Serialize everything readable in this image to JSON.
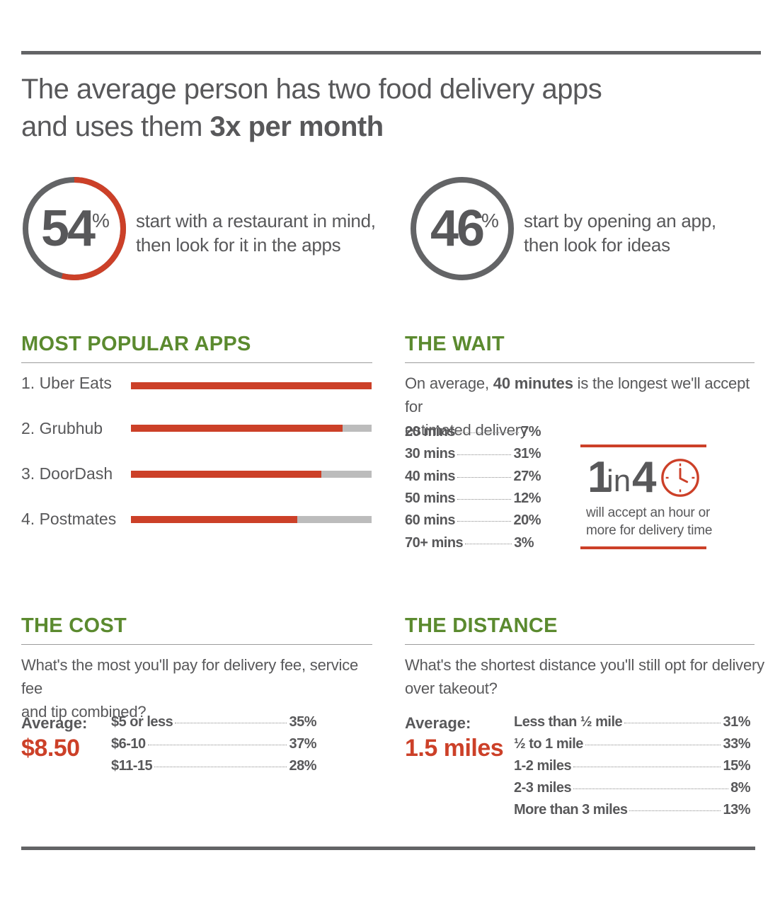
{
  "headline": {
    "line1": "The average person has two food delivery apps",
    "line2_plain": "and uses them ",
    "line2_bold": "3x per month"
  },
  "stats": [
    {
      "number": "54",
      "symbol": "%",
      "line1": "start with a restaurant in mind,",
      "line2": "then look for it in the apps",
      "percent": 54
    },
    {
      "number": "46",
      "symbol": "%",
      "line1": "start by opening an app,",
      "line2": "then look for ideas",
      "percent": 46
    }
  ],
  "apps": {
    "title": "MOST POPULAR APPS",
    "items": [
      {
        "label": "1. Uber Eats",
        "fill": 1.0
      },
      {
        "label": "2. Grubhub",
        "fill": 0.88
      },
      {
        "label": "3. DoorDash",
        "fill": 0.79
      },
      {
        "label": "4. Postmates",
        "fill": 0.69
      }
    ]
  },
  "wait": {
    "title": "THE WAIT",
    "intro_pre": "On average, ",
    "intro_bold": "40 minutes",
    "intro_post": " is the longest we'll accept for",
    "intro_line2": "estimated delivery",
    "rows": [
      {
        "label": "20 mins",
        "value": "7%"
      },
      {
        "label": "30 mins",
        "value": "31%"
      },
      {
        "label": "40 mins",
        "value": "27%"
      },
      {
        "label": "50 mins",
        "value": "12%"
      },
      {
        "label": "60 mins",
        "value": "20%"
      },
      {
        "label": "70+ mins",
        "value": "3%"
      }
    ],
    "callout": {
      "num1": "1",
      "in": "in",
      "num2": "4",
      "line1": "will accept an hour or",
      "line2": "more for delivery time"
    }
  },
  "cost": {
    "title": "THE COST",
    "question_line1": "What's the most you'll pay for delivery fee, service fee",
    "question_line2": "and tip combined?",
    "avg_label": "Average:",
    "avg_value": "$8.50",
    "rows": [
      {
        "label": "$5 or less",
        "value": "35%"
      },
      {
        "label": "$6-10",
        "value": "37%"
      },
      {
        "label": "$11-15",
        "value": "28%"
      }
    ]
  },
  "distance": {
    "title": "THE DISTANCE",
    "question_line1": "What's the shortest distance you'll still opt for delivery",
    "question_line2": "over takeout?",
    "avg_label": "Average:",
    "avg_value": "1.5 miles",
    "rows": [
      {
        "label": "Less than ½ mile",
        "value": "31%"
      },
      {
        "label": "½ to 1 mile",
        "value": "33%"
      },
      {
        "label": "1-2 miles",
        "value": "15%"
      },
      {
        "label": "2-3 miles",
        "value": "8%"
      },
      {
        "label": "More than 3 miles",
        "value": "13%"
      }
    ]
  },
  "colors": {
    "accent": "#cc4028",
    "green": "#5b8a2f",
    "gray": "#636466",
    "track": "#bcbcbc"
  }
}
